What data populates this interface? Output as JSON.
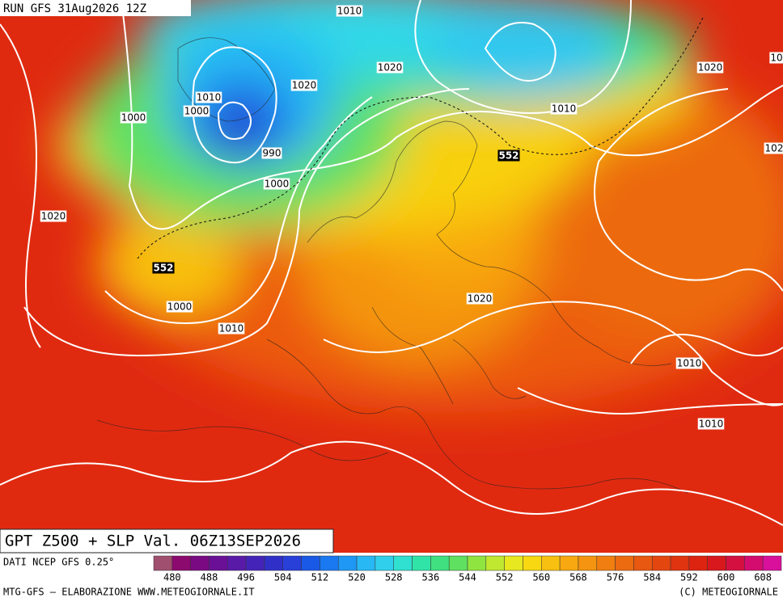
{
  "header": {
    "run": "RUN GFS 31Aug2026 12Z"
  },
  "map": {
    "isobar_labels": [
      "1010",
      "1020",
      "1020",
      "1010",
      "1000",
      "1000",
      "990",
      "1000",
      "1020",
      "1000",
      "1010",
      "1020",
      "1020",
      "1010",
      "1010",
      "1010",
      "102",
      "10"
    ],
    "z500_labels": [
      "552",
      "552"
    ]
  },
  "footer": {
    "title": "GPT Z500 + SLP Val. 06Z13SEP2026",
    "source": "DATI NCEP GFS 0.25°",
    "credit": "MTG-GFS — ELABORAZIONE WWW.METEOGIORNALE.IT",
    "copyright": "(C) METEOGIORNALE"
  },
  "colorbar": {
    "ticks": [
      480,
      488,
      496,
      504,
      512,
      520,
      528,
      536,
      544,
      552,
      560,
      568,
      576,
      584,
      592,
      600,
      608
    ],
    "colors": [
      "#a0506e",
      "#8c0a6e",
      "#7a0a82",
      "#6a1096",
      "#5a1aa8",
      "#4424b8",
      "#3030c8",
      "#2840d8",
      "#1a58e6",
      "#1a78f0",
      "#1e98f4",
      "#28b8f4",
      "#30d0ec",
      "#30e0d0",
      "#30e4a8",
      "#40e080",
      "#60e060",
      "#90e440",
      "#c0e830",
      "#e8e820",
      "#f8d810",
      "#f8c010",
      "#f8a810",
      "#f49410",
      "#f07e10",
      "#ec6a10",
      "#e85810",
      "#e44610",
      "#e03410",
      "#dc2410",
      "#d8181c",
      "#d41040",
      "#d40c70",
      "#d8109c"
    ]
  }
}
